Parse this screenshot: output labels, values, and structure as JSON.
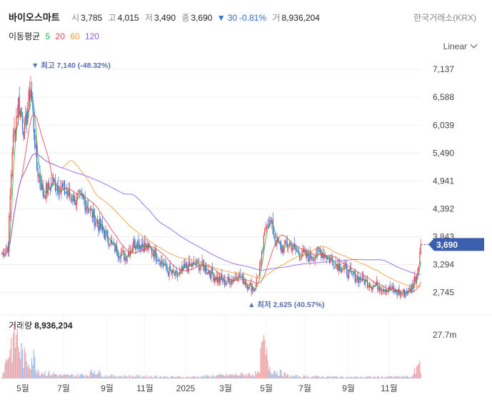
{
  "header": {
    "stock_name": "바이오스마트",
    "open_label": "시",
    "open_value": "3,785",
    "high_label": "고",
    "high_value": "4,015",
    "low_label": "저",
    "low_value": "3,490",
    "close_label": "종",
    "close_value": "3,690",
    "change_arrow": "▼",
    "change_value": "30",
    "change_pct": "-0.81%",
    "volume_label": "거",
    "volume_value": "8,936,204",
    "exchange": "한국거래소(KRX)"
  },
  "moving_averages": {
    "label": "이동평균",
    "periods": [
      {
        "label": "5",
        "color": "#2bb24c"
      },
      {
        "label": "20",
        "color": "#e5484d"
      },
      {
        "label": "60",
        "color": "#f39b3a"
      },
      {
        "label": "120",
        "color": "#8b5cf6"
      }
    ]
  },
  "scale_selector": {
    "label": "Linear"
  },
  "volume_panel": {
    "label": "거래량",
    "value": "8,936,204"
  },
  "colors": {
    "up": "#e5484d",
    "down": "#2f6fdb",
    "price_tag": "#3b5fae",
    "ma5": "#2bb24c",
    "ma20": "#e5484d",
    "ma60": "#f39b3a",
    "ma120": "#8b5cf6"
  },
  "chart_data": {
    "type": "candlestick",
    "price_axis": {
      "ticks": [
        "7,137",
        "6,588",
        "6,039",
        "5,490",
        "4,941",
        "4,392",
        "3,843",
        "3,294",
        "2,745"
      ],
      "ylim": [
        2500,
        7350
      ]
    },
    "volume_axis": {
      "ticks": [
        "27.7m"
      ]
    },
    "x_ticks": [
      "5월",
      "7월",
      "9월",
      "11월",
      "2025",
      "3월",
      "5월",
      "7월",
      "9월",
      "11월"
    ],
    "current_price_tag": "3,690",
    "high_annotation": {
      "marker": "▼",
      "text": "최고 7,140 (-48.32%)"
    },
    "low_annotation": {
      "marker": "▲",
      "text": "최저 2,625 (40.57%)"
    },
    "close_series_anchors": [
      [
        0,
        3500
      ],
      [
        6,
        3650
      ],
      [
        10,
        5600
      ],
      [
        16,
        6500
      ],
      [
        22,
        5900
      ],
      [
        28,
        6800
      ],
      [
        34,
        5200
      ],
      [
        40,
        4700
      ],
      [
        50,
        4900
      ],
      [
        60,
        4750
      ],
      [
        70,
        4600
      ],
      [
        80,
        4550
      ],
      [
        90,
        4200
      ],
      [
        100,
        3900
      ],
      [
        110,
        3600
      ],
      [
        120,
        3450
      ],
      [
        130,
        3750
      ],
      [
        140,
        3650
      ],
      [
        150,
        3500
      ],
      [
        160,
        3200
      ],
      [
        170,
        3050
      ],
      [
        180,
        3250
      ],
      [
        190,
        3300
      ],
      [
        200,
        3200
      ],
      [
        210,
        3000
      ],
      [
        220,
        2950
      ],
      [
        230,
        3100
      ],
      [
        240,
        2900
      ],
      [
        246,
        2800
      ],
      [
        252,
        3300
      ],
      [
        258,
        4200
      ],
      [
        262,
        4100
      ],
      [
        266,
        3800
      ],
      [
        272,
        3600
      ],
      [
        280,
        3700
      ],
      [
        290,
        3500
      ],
      [
        300,
        3450
      ],
      [
        310,
        3550
      ],
      [
        320,
        3400
      ],
      [
        330,
        3250
      ],
      [
        340,
        3100
      ],
      [
        350,
        3000
      ],
      [
        360,
        2900
      ],
      [
        370,
        2850
      ],
      [
        380,
        2780
      ],
      [
        390,
        2720
      ],
      [
        398,
        2800
      ],
      [
        404,
        3100
      ],
      [
        408,
        3690
      ]
    ],
    "volume_relative_anchors": [
      [
        0,
        0.05
      ],
      [
        8,
        0.7
      ],
      [
        14,
        0.95
      ],
      [
        18,
        0.6
      ],
      [
        24,
        0.35
      ],
      [
        30,
        0.5
      ],
      [
        36,
        0.15
      ],
      [
        60,
        0.06
      ],
      [
        84,
        0.08
      ],
      [
        90,
        0.18
      ],
      [
        100,
        0.06
      ],
      [
        130,
        0.05
      ],
      [
        180,
        0.03
      ],
      [
        250,
        0.1
      ],
      [
        254,
        0.75
      ],
      [
        258,
        0.45
      ],
      [
        262,
        0.2
      ],
      [
        280,
        0.05
      ],
      [
        340,
        0.03
      ],
      [
        400,
        0.04
      ],
      [
        406,
        0.35
      ],
      [
        408,
        0.3
      ]
    ]
  }
}
